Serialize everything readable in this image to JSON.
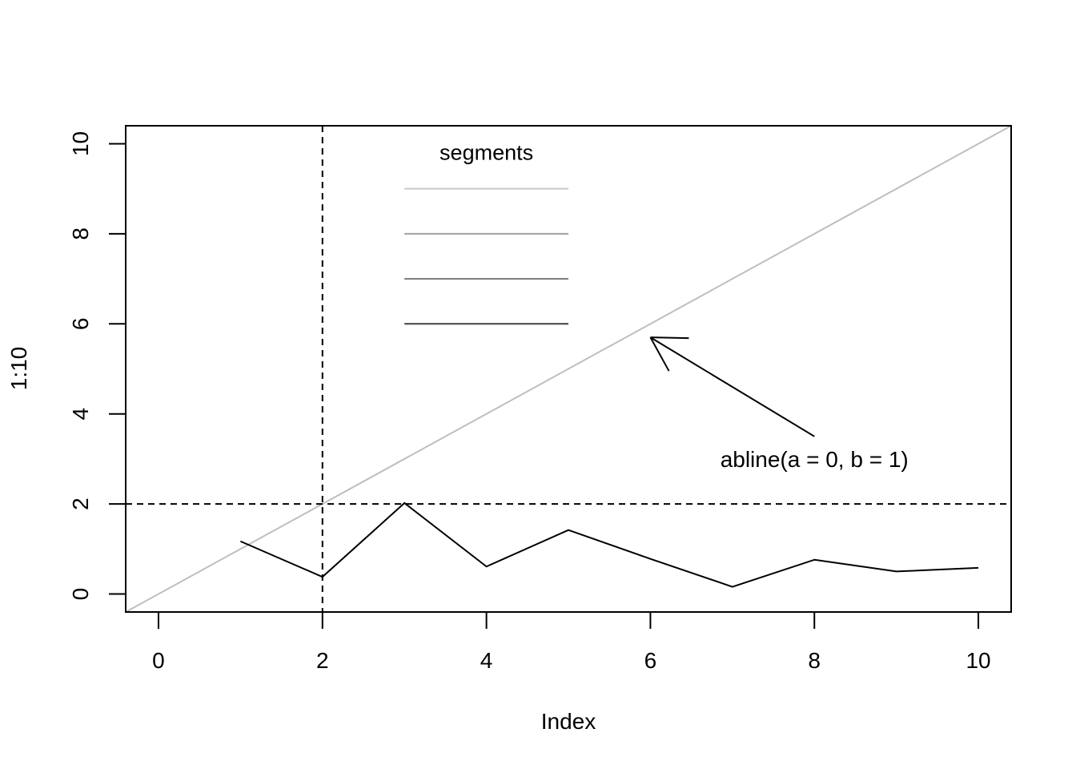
{
  "chart_data": {
    "type": "line",
    "title": "",
    "xlabel": "Index",
    "ylabel": "1:10",
    "xlim": [
      -0.4,
      10.4
    ],
    "ylim": [
      -0.4,
      10.4
    ],
    "x_ticks": [
      0,
      2,
      4,
      6,
      8,
      10
    ],
    "y_ticks": [
      0,
      2,
      4,
      6,
      8,
      10
    ],
    "x_tick_labels": [
      "0",
      "2",
      "4",
      "6",
      "8",
      "10"
    ],
    "y_tick_labels": [
      "0",
      "2",
      "4",
      "6",
      "8",
      "10"
    ],
    "grid": false,
    "series": [
      {
        "x": [
          1,
          2,
          3,
          4,
          5,
          6,
          7,
          8,
          9,
          10
        ],
        "y": [
          1.17,
          0.38,
          2.02,
          0.61,
          1.42,
          0.78,
          0.16,
          0.76,
          0.5,
          0.58
        ],
        "color": "#000000"
      }
    ],
    "ablines": [
      {
        "type": "slope",
        "a": 0,
        "b": 1,
        "color": "#bebebe"
      },
      {
        "type": "v",
        "x": 2,
        "style": "dashed",
        "color": "#000000"
      },
      {
        "type": "h",
        "y": 2,
        "style": "dashed",
        "color": "#000000"
      }
    ],
    "legend": {
      "title": "segments",
      "placement": "top-center",
      "segments": [
        {
          "x0": 3,
          "x1": 5,
          "y": 9,
          "color": "#c8c8c8"
        },
        {
          "x0": 3,
          "x1": 5,
          "y": 8,
          "color": "#a0a0a0"
        },
        {
          "x0": 3,
          "x1": 5,
          "y": 7,
          "color": "#787878"
        },
        {
          "x0": 3,
          "x1": 5,
          "y": 6,
          "color": "#404040"
        }
      ]
    },
    "arrow": {
      "from": [
        8,
        3.5
      ],
      "to": [
        6,
        5.7
      ],
      "color": "#000000"
    },
    "annotation": {
      "text": "abline(a = 0, b = 1)",
      "x": 8,
      "y": 3
    }
  }
}
